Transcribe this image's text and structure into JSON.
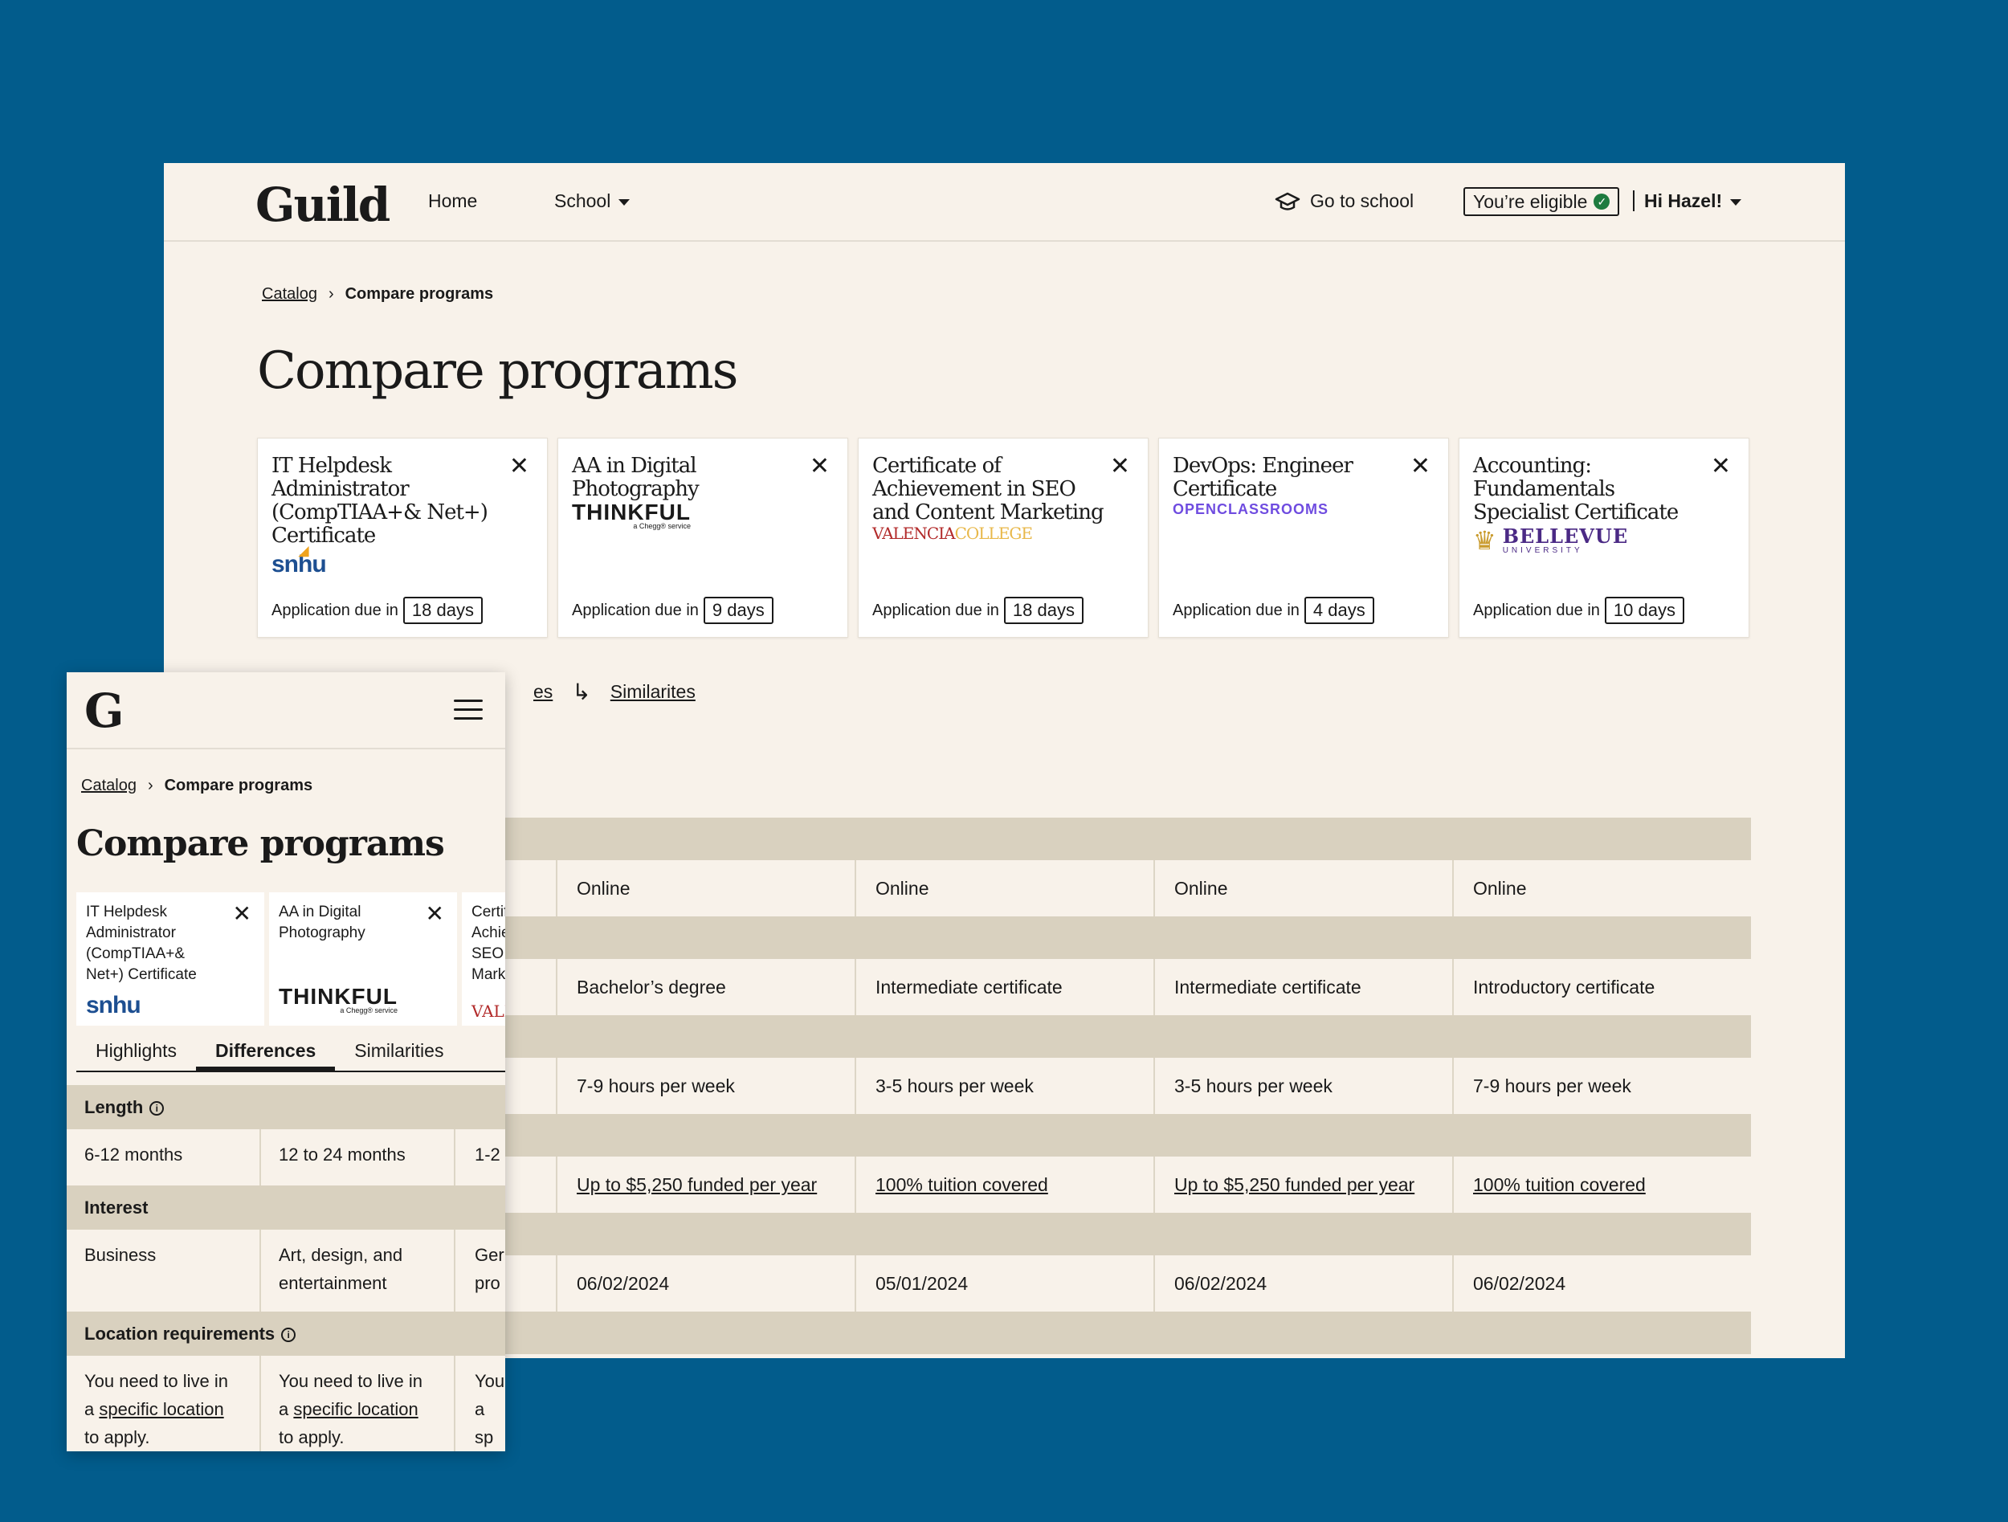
{
  "desktop": {
    "brand": "Guild",
    "nav": {
      "home": "Home",
      "school": "School"
    },
    "go_to_school": "Go to school",
    "eligible": "You’re eligible",
    "greeting": "Hi Hazel!",
    "breadcrumb": {
      "catalog": "Catalog",
      "separator": "›",
      "current": "Compare programs"
    },
    "title": "Compare programs",
    "due_prefix": "Application due in",
    "programs": [
      {
        "name": "IT Helpdesk Administrator (CompTIAA+& Net+) Certificate",
        "school": "snhu",
        "days": "18 days"
      },
      {
        "name": "AA in Digital Photography",
        "school": "THINKFUL",
        "school_sub": "a Chegg® service",
        "days": "9 days"
      },
      {
        "name": "Certificate of Achievement in SEO and Content Marketing",
        "school": "VALENCIA",
        "school_b": "COLLEGE",
        "days": "18 days"
      },
      {
        "name": "DevOps: Engineer Certificate",
        "school": "OPENCLASSROOMS",
        "days": "4 days"
      },
      {
        "name": "Accounting: Fundamentals Specialist Certificate",
        "school": "BELLEVUE",
        "school_sub": "UNIVERSITY",
        "days": "10 days"
      }
    ],
    "tabs": {
      "partial": "es",
      "similarities": "Similarites"
    },
    "table_rows": [
      [
        "Online",
        "Online",
        "Online",
        "Online"
      ],
      [
        "Bachelor’s degree",
        "Intermediate certificate",
        "Intermediate certificate",
        "Introductory certificate"
      ],
      [
        "7-9 hours per week",
        "3-5 hours per week",
        "3-5 hours per week",
        "7-9 hours per week"
      ],
      [
        "Up to $5,250 funded per year",
        "100% tuition covered",
        "Up to $5,250 funded per year",
        "100% tuition covered"
      ],
      [
        "06/02/2024",
        "05/01/2024",
        "06/02/2024",
        "06/02/2024"
      ]
    ]
  },
  "mobile": {
    "brand": "G",
    "breadcrumb": {
      "catalog": "Catalog",
      "separator": "›",
      "current": "Compare programs"
    },
    "title": "Compare programs",
    "cards": [
      {
        "name": "IT Helpdesk Administrator (CompTIAA+& Net+) Certificate",
        "logo": "snhu"
      },
      {
        "name": "AA in Digital Photography",
        "logo": "THINKFUL",
        "logo_sub": "a Chegg® service"
      },
      {
        "name": "Certificate of Achievement in SEO and Content Marketing",
        "logo": "VALE"
      }
    ],
    "tabs": [
      "Highlights",
      "Differences",
      "Similarities"
    ],
    "active_tab": "Differences",
    "sections": {
      "length": {
        "label": "Length",
        "values": [
          "6-12 months",
          "12 to 24 months",
          "1-2"
        ]
      },
      "interest": {
        "label": "Interest",
        "values": [
          "Business",
          "Art, design, and entertainment",
          "Ger pro"
        ]
      },
      "location": {
        "label": "Location requirements",
        "pre": "You need to live in a",
        "link": "specific location",
        "post": "to apply.",
        "third": "You a sp to a"
      }
    }
  }
}
